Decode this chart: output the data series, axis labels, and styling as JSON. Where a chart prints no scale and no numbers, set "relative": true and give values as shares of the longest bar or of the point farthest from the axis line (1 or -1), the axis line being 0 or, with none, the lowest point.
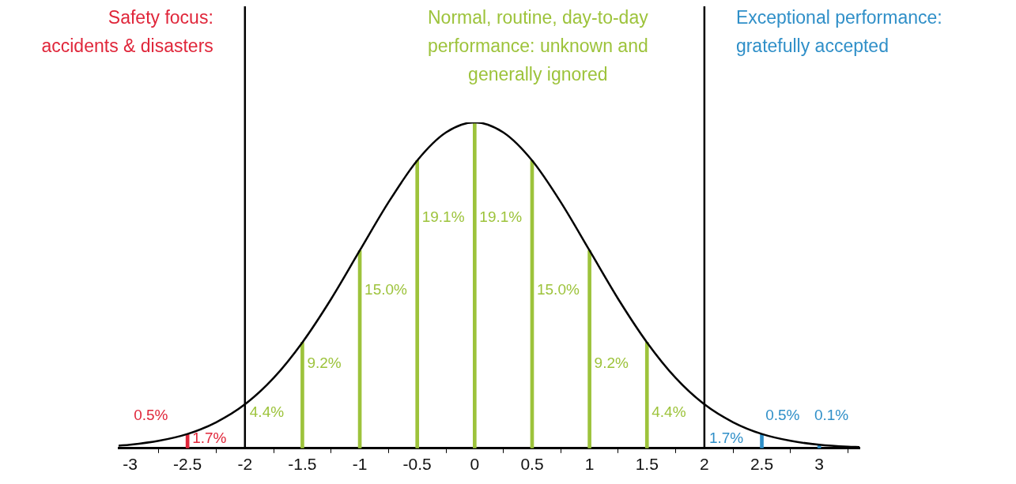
{
  "chart_data": {
    "type": "line",
    "relative": true,
    "legend": false,
    "grid": false,
    "tick_labels": "x",
    "marker": "none",
    "xlim": [
      -3.1,
      3.35
    ],
    "xticks": [
      -3,
      -2.5,
      -2,
      -1.5,
      -1,
      -0.5,
      0,
      0.5,
      1,
      1.5,
      2,
      2.5,
      3
    ],
    "series": [
      {
        "type": "bar",
        "x": [
          -2.5,
          -1.5,
          -1,
          -0.5,
          0,
          0.5,
          1,
          1.5,
          2.5,
          3
        ],
        "values": [
          0.044,
          0.325,
          0.607,
          0.883,
          1,
          0.883,
          0.607,
          0.325,
          0.044,
          0.011
        ],
        "colors": [
          "#e0263a",
          "#9dc33b",
          "#9dc33b",
          "#9dc33b",
          "#9dc33b",
          "#9dc33b",
          "#9dc33b",
          "#9dc33b",
          "#2f8fc8",
          "#2f8fc8"
        ]
      },
      {
        "color": "#000000",
        "x": [
          -3.1,
          -3,
          -2.75,
          -2.5,
          -2.25,
          -2,
          -1.75,
          -1.5,
          -1.25,
          -1,
          -0.75,
          -0.5,
          -0.25,
          0,
          0.25,
          0.5,
          0.75,
          1,
          1.25,
          1.5,
          1.75,
          2,
          2.25,
          2.5,
          2.75,
          3,
          3.25,
          3.35
        ],
        "values": [
          0.008,
          0.011,
          0.023,
          0.044,
          0.08,
          0.135,
          0.216,
          0.325,
          0.458,
          0.607,
          0.755,
          0.883,
          0.969,
          1,
          0.969,
          0.883,
          0.755,
          0.607,
          0.458,
          0.325,
          0.216,
          0.135,
          0.08,
          0.044,
          0.023,
          0.011,
          0.005,
          0.004
        ]
      }
    ],
    "ref_lines": [
      {
        "axis": "x",
        "value": -2,
        "color": "#000000"
      },
      {
        "axis": "x",
        "value": 2,
        "color": "#000000"
      }
    ],
    "annotations": [
      "Safety focus:\naccidents & disasters",
      "Normal, routine, day-to-day\nperformance: unknown and\ngenerally ignored",
      "Exceptional performance:\ngratefully accepted",
      "0.5%",
      "1.7%",
      "4.4%",
      "9.2%",
      "15.0%",
      "19.1%",
      "19.1%",
      "15.0%",
      "9.2%",
      "4.4%",
      "1.7%",
      "0.5%",
      "0.1%"
    ]
  }
}
